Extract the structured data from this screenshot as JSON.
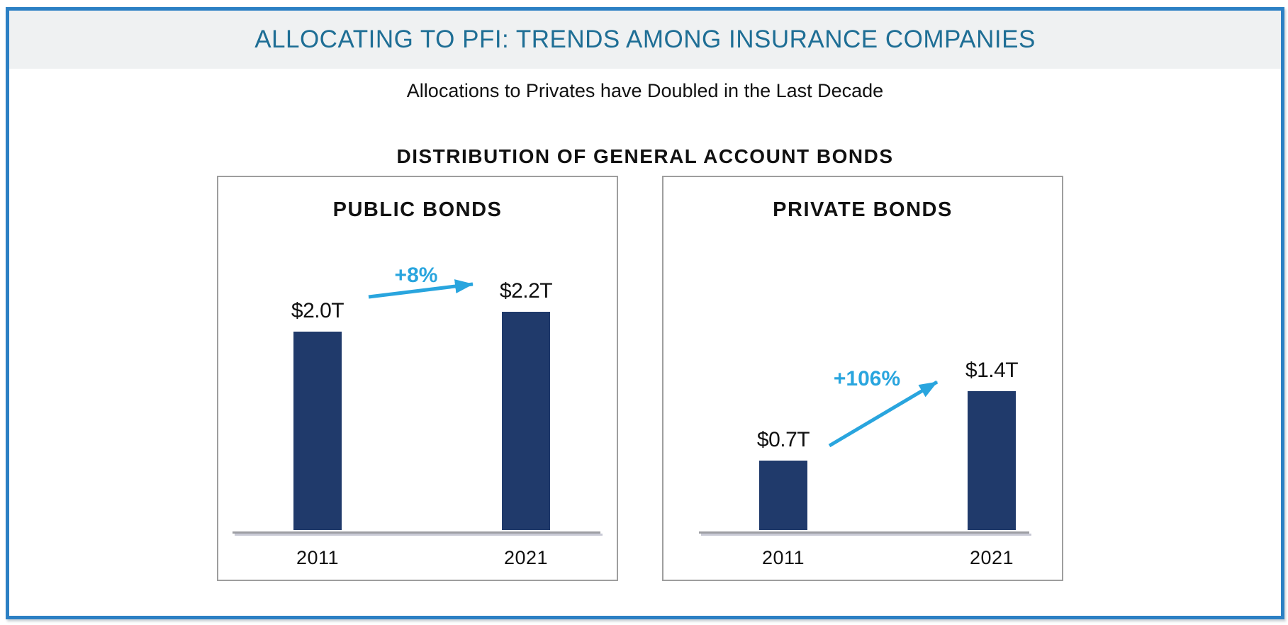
{
  "header": {
    "title": "ALLOCATING TO PFI: TRENDS AMONG INSURANCE COMPANIES"
  },
  "subtitle": "Allocations to Privates have Doubled in the Last Decade",
  "section_title": "DISTRIBUTION OF GENERAL ACCOUNT BONDS",
  "colors": {
    "frame_border": "#2C80C4",
    "header_bg": "#EFF1F2",
    "header_text": "#1E6E95",
    "text": "#1A1A1A",
    "bar": "#203A6B",
    "accent": "#29A5DE",
    "axis": "#9D9EA3",
    "axis_shadow": "#C9CAD6",
    "panel_border": "#9E9E9E"
  },
  "chart_data": [
    {
      "type": "bar",
      "title": "PUBLIC BONDS",
      "categories": [
        "2011",
        "2021"
      ],
      "values": [
        2.0,
        2.2
      ],
      "value_labels": [
        "$2.0T",
        "$2.2T"
      ],
      "change_label": "+8%",
      "unit": "USD trillions",
      "ylim": [
        0,
        2.5
      ],
      "grid": false,
      "legend": false
    },
    {
      "type": "bar",
      "title": "PRIVATE BONDS",
      "categories": [
        "2011",
        "2021"
      ],
      "values": [
        0.7,
        1.4
      ],
      "value_labels": [
        "$0.7T",
        "$1.4T"
      ],
      "change_label": "+106%",
      "unit": "USD trillions",
      "ylim": [
        0,
        2.5
      ],
      "grid": false,
      "legend": false
    }
  ]
}
